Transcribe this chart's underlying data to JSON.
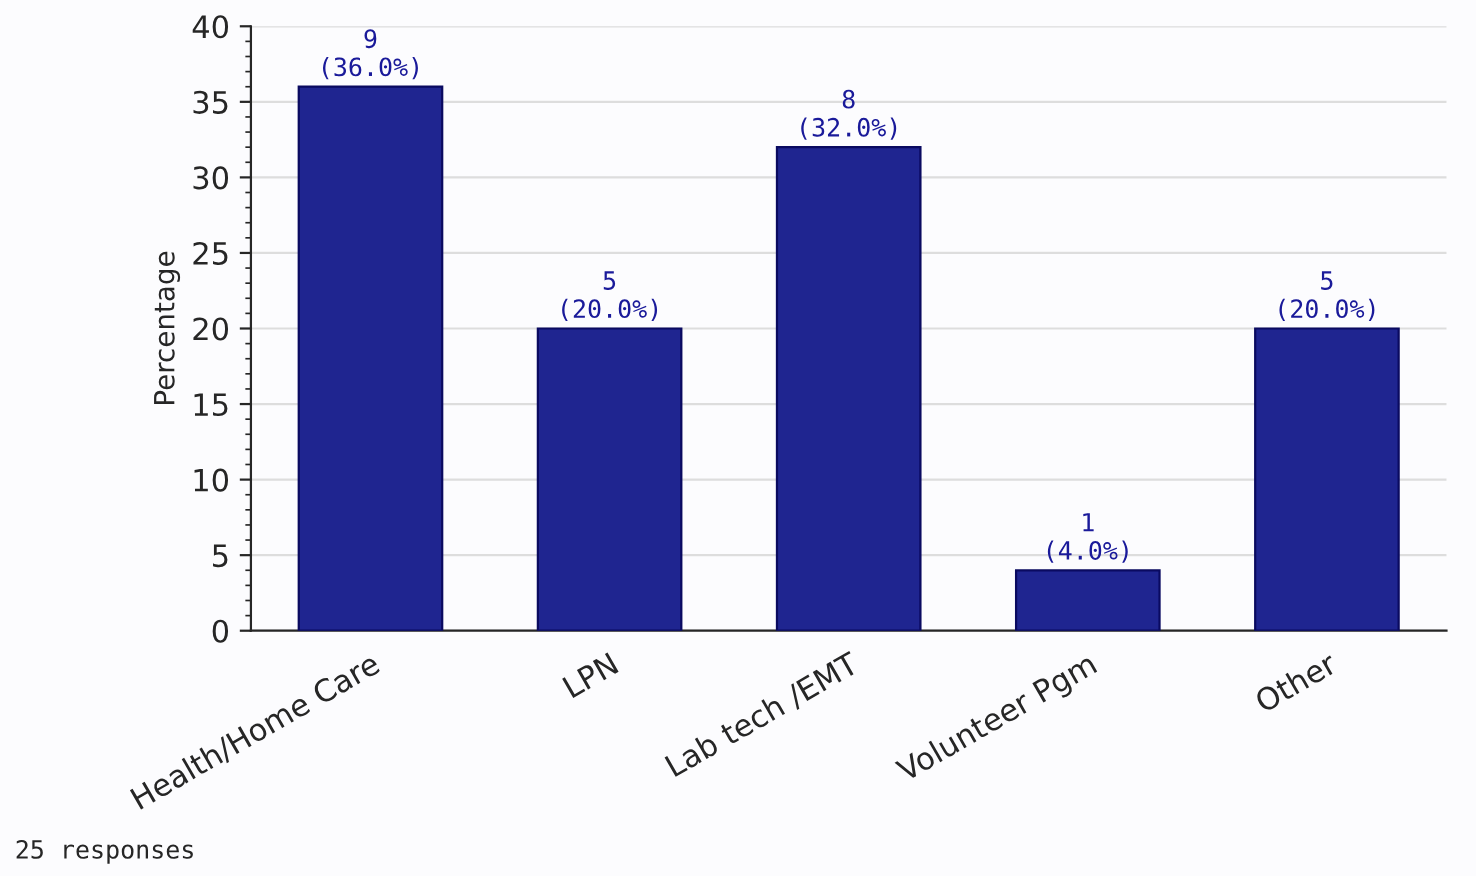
{
  "chart_data": {
    "type": "bar",
    "ylabel": "Percentage",
    "categories": [
      "Health/Home Care",
      "LPN",
      "Lab tech /EMT",
      "Volunteer Pgm",
      "Other"
    ],
    "values": [
      36,
      20,
      32,
      4,
      20
    ],
    "value_labels": [
      "9\n(36.0%)",
      "5\n(20.0%)",
      "8\n(32.0%)",
      "1\n(4.0%)",
      "5\n(20.0%)"
    ],
    "color": "#1f2590",
    "ylim": [
      0,
      40
    ],
    "yticks": [
      0,
      5,
      10,
      15,
      20,
      25,
      30,
      35,
      40
    ],
    "grid": "y",
    "annotations": [
      "25 responses"
    ]
  }
}
